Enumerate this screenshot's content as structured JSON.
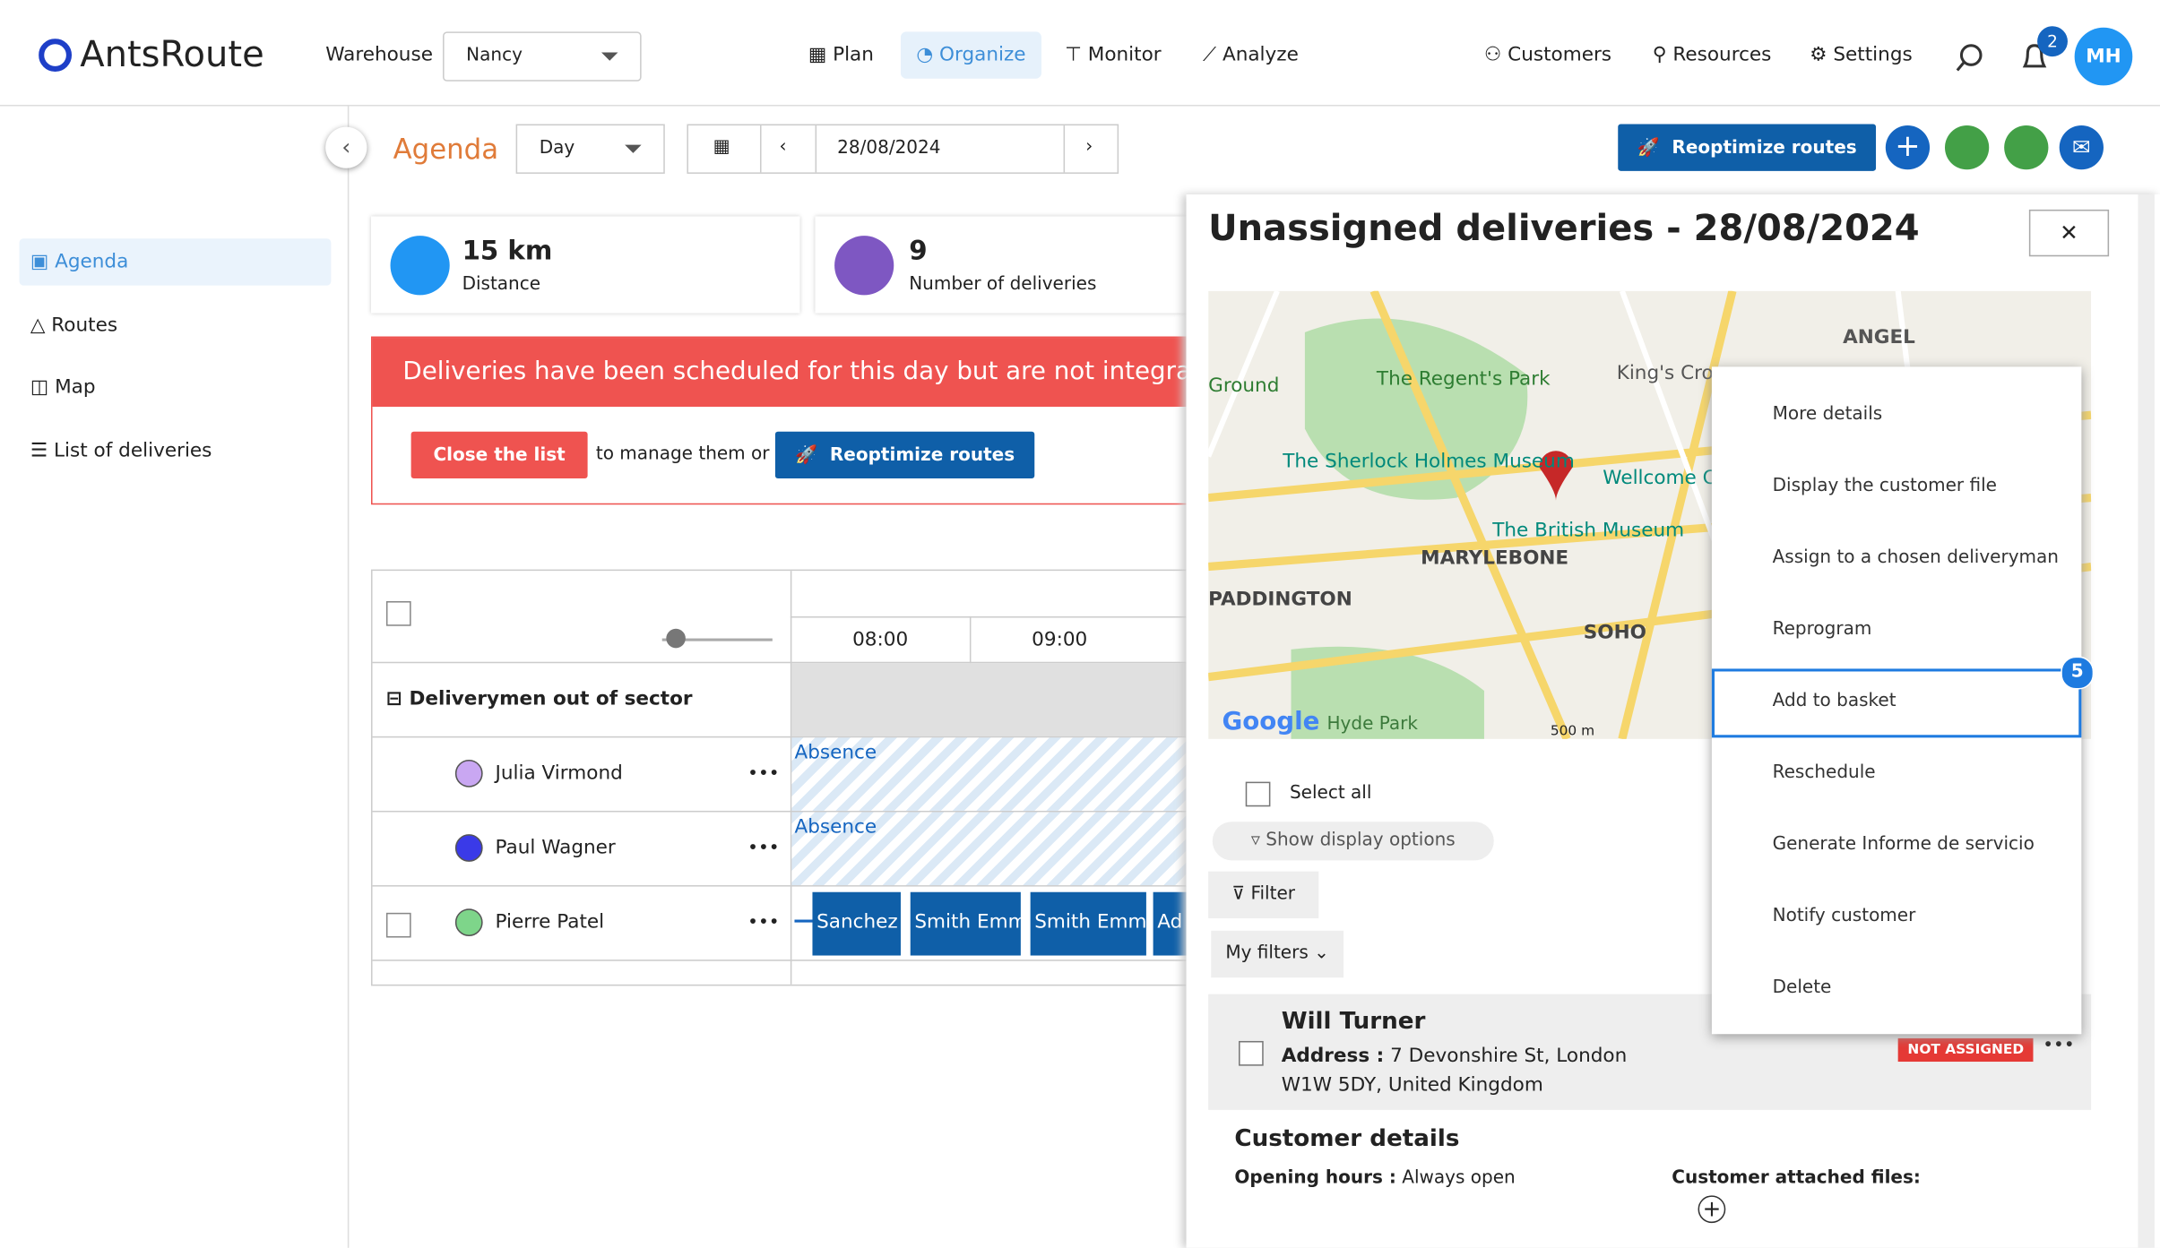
{
  "header": {
    "logo": "AntsRoute",
    "warehouse_label": "Warehouse",
    "warehouse": "Nancy",
    "nav": [
      "Plan",
      "Organize",
      "Monitor",
      "Analyze"
    ],
    "right_nav": [
      "Customers",
      "Resources",
      "Settings"
    ],
    "notifications": "2",
    "avatar": "MH"
  },
  "toolbar": {
    "title": "Agenda",
    "view": "Day",
    "date": "28/08/2024",
    "reoptimize": "Reoptimize routes"
  },
  "sidebar": [
    "Agenda",
    "Routes",
    "Map",
    "List of deliveries"
  ],
  "stats": [
    {
      "value": "15 km",
      "label": "Distance"
    },
    {
      "value": "9",
      "label": "Number of deliveries"
    }
  ],
  "alert": {
    "message": "Deliveries have been scheduled for this day but are not integra",
    "close_button": "Close the list",
    "middle": "to manage them or",
    "button": "Reoptimize routes"
  },
  "schedule": {
    "times": [
      "08:00",
      "09:00"
    ],
    "group": "Deliverymen out of sector",
    "rows": [
      {
        "name": "Julia Virmond",
        "status": "Absence"
      },
      {
        "name": "Paul Wagner",
        "status": "Absence"
      },
      {
        "name": "Pierre Patel",
        "tasks": [
          "Sanchez",
          "Smith Emm",
          "Smith Emm",
          "Ad"
        ]
      }
    ]
  },
  "panel": {
    "title": "Unassigned deliveries - 28/08/2024",
    "map_labels": [
      "ANGEL",
      "King's Cross",
      "The Regent's Park",
      "The Sherlock Holmes Museum",
      "Wellcome C",
      "The British Museum",
      "MARYLEBONE",
      "PADDINGTON",
      "SOHO",
      "Hyde Park",
      "Ground",
      "Google",
      "500 m"
    ],
    "select_all": "Select all",
    "display_options": "Show display options",
    "filter": "Filter",
    "my_filters": "My filters",
    "card": {
      "name": "Will Turner",
      "address_label": "Address :",
      "address_1": "7 Devonshire St, London",
      "address_2": "W1W 5DY, United Kingdom",
      "status": "NOT ASSIGNED",
      "section": "Customer details",
      "opening_label": "Opening hours :",
      "opening": "Always open",
      "files": "Customer attached files:"
    }
  },
  "menu": {
    "items": [
      "More details",
      "Display the customer file",
      "Assign to a chosen deliveryman",
      "Reprogram",
      "Add to basket",
      "Reschedule",
      "Generate Informe de servicio",
      "Notify customer",
      "Delete"
    ],
    "step": "5"
  }
}
